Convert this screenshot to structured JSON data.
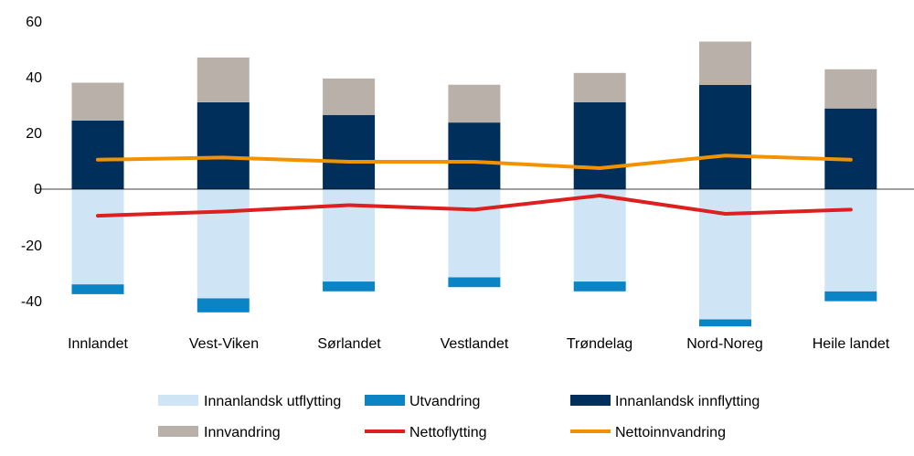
{
  "chart_data": {
    "type": "bar",
    "stacked": true,
    "categories": [
      "Innlandet",
      "Vest-Viken",
      "Sørlandet",
      "Vestlandet",
      "Trøndelag",
      "Nord-Noreg",
      "Heile landet"
    ],
    "series": [
      {
        "name": "Innanlandsk utflytting",
        "kind": "bar",
        "color": "#cfe5f6",
        "values": [
          -34,
          -39,
          -33,
          -31.5,
          -33,
          -46.5,
          -36.5
        ]
      },
      {
        "name": "Utvandring",
        "kind": "bar",
        "color": "#0a84c4",
        "values": [
          -3.5,
          -5,
          -3.5,
          -3.5,
          -3.5,
          -2.5,
          -3.5
        ]
      },
      {
        "name": "Innanlandsk innflytting",
        "kind": "bar",
        "color": "#002f5b",
        "values": [
          24.5,
          31,
          26.5,
          23.8,
          31,
          37.2,
          28.8
        ]
      },
      {
        "name": "Innvandring",
        "kind": "bar",
        "color": "#b9b0aa",
        "values": [
          13.5,
          16,
          13,
          13.5,
          10.5,
          15.5,
          14
        ]
      },
      {
        "name": "Nettoflytting",
        "kind": "line",
        "color": "#dd1f1f",
        "values": [
          -9.5,
          -8,
          -5.7,
          -7.3,
          -2.3,
          -8.8,
          -7.3
        ]
      },
      {
        "name": "Nettoinnvandring",
        "kind": "line",
        "color": "#f39200",
        "values": [
          10.5,
          11.3,
          9.8,
          9.8,
          7.5,
          12,
          10.5
        ]
      }
    ],
    "yticks": [
      "60",
      "40",
      "20",
      "0",
      "-20",
      "-40"
    ],
    "ylim": [
      -50,
      60
    ],
    "grid": false,
    "legend_position": "bottom"
  }
}
